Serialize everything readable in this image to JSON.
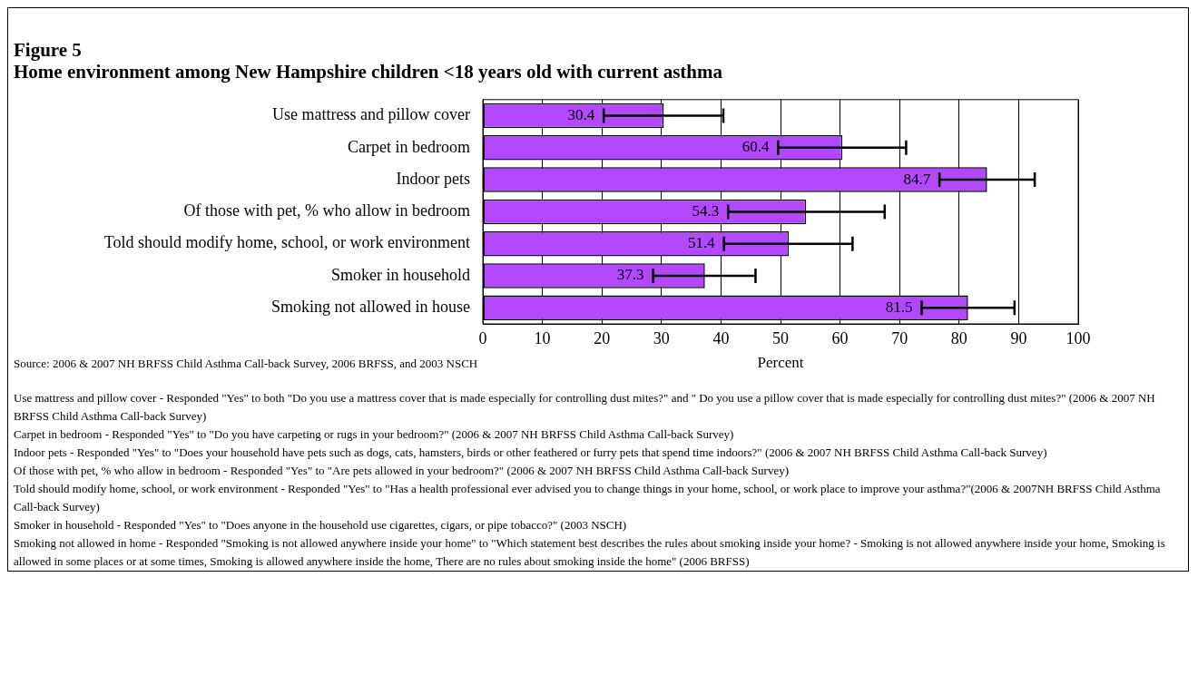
{
  "chart_data": {
    "type": "bar",
    "orientation": "horizontal",
    "title": "Figure 5",
    "subtitle": "Home environment among New Hampshire children <18 years old with current asthma",
    "xlabel": "Percent",
    "categories": [
      "Use mattress and pillow cover",
      "Carpet in bedroom",
      "Indoor pets",
      "Of those with pet, % who allow in bedroom",
      "Told should modify home, school, or work environment",
      "Smoker in household",
      "Smoking not allowed in house"
    ],
    "values": [
      30.4,
      60.4,
      84.7,
      54.3,
      51.4,
      37.3,
      81.5
    ],
    "errors": [
      [
        20.3,
        40.4
      ],
      [
        49.6,
        71.1
      ],
      [
        76.7,
        92.7
      ],
      [
        41.2,
        67.5
      ],
      [
        40.5,
        62.1
      ],
      [
        28.6,
        45.8
      ],
      [
        73.7,
        89.3
      ]
    ],
    "color": "#b348ff",
    "data_labels": true,
    "grid": "x",
    "legend": false,
    "xlim": [
      0,
      100
    ],
    "xticks": [
      0,
      10,
      20,
      30,
      40,
      50,
      60,
      70,
      80,
      90,
      100
    ],
    "annotations": [
      "Source: 2006 & 2007 NH BRFSS Child Asthma Call-back Survey, 2006 BRFSS, and 2003 NSCH",
      "Use mattress and pillow cover - Responded \"Yes\" to both \"Do you use a mattress cover that is made especially for controlling dust mites?\" and \" Do you use a pillow cover that is made especially for controlling dust mites?\" (2006 & 2007 NH BRFSS Child Asthma Call-back Survey)",
      "Carpet in bedroom - Responded \"Yes\" to \"Do you have carpeting or rugs in your bedroom?\" (2006 & 2007 NH BRFSS Child Asthma Call-back Survey)",
      "Indoor pets - Responded \"Yes\" to \"Does your household have pets such as dogs, cats, hamsters, birds or other feathered or furry pets that spend time indoors?\" (2006 & 2007 NH BRFSS Child Asthma Call-back Survey)",
      "Of those with pet, % who allow in bedroom -  Responded \"Yes\" to \"Are pets allowed in your bedroom?\" (2006 & 2007 NH BRFSS Child Asthma Call-back Survey)",
      "Told should modify home, school, or work environment  -  Responded \"Yes\" to \"Has a health professional ever advised you to change things in your home, school, or work place to improve your asthma?\"(2006 & 2007NH BRFSS Child Asthma Call-back Survey)",
      "Smoker in household - Responded \"Yes\" to \"Does anyone in the household use cigarettes, cigars, or pipe tobacco?\" (2003 NSCH)",
      "Smoking not allowed in home -  Responded \"Smoking is not allowed anywhere inside your home\" to \"Which statement best describes the rules about smoking inside your home? - Smoking is not allowed anywhere inside your home, Smoking is allowed in some places or at some times, Smoking is allowed anywhere inside the home, There are no rules about smoking inside the home\" (2006 BRFSS)"
    ]
  }
}
